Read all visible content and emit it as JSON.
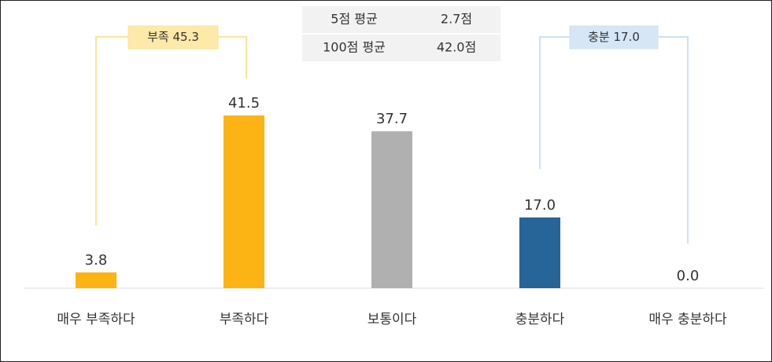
{
  "chart_data": {
    "type": "bar",
    "categories": [
      "매우 부족하다",
      "부족하다",
      "보통이다",
      "충분하다",
      "매우 충분하다"
    ],
    "values": [
      3.8,
      41.5,
      37.7,
      17.0,
      0.0
    ],
    "value_labels": [
      "3.8",
      "41.5",
      "37.7",
      "17.0",
      "0.0"
    ],
    "colors": [
      "#fbb414",
      "#fbb414",
      "#b0b0b0",
      "#276498",
      "#276498"
    ],
    "ylim": [
      0,
      50
    ],
    "annotations": [
      {
        "text": "부족 45.3",
        "color": "#fde9a8",
        "line_color": "#fde39a"
      },
      {
        "text": "충분 17.0",
        "color": "#d6e6f5",
        "line_color": "#cfe1f1"
      }
    ],
    "summary": [
      {
        "label": "5점 평균",
        "value": "2.7점"
      },
      {
        "label": "100점 평균",
        "value": "42.0점"
      }
    ]
  }
}
